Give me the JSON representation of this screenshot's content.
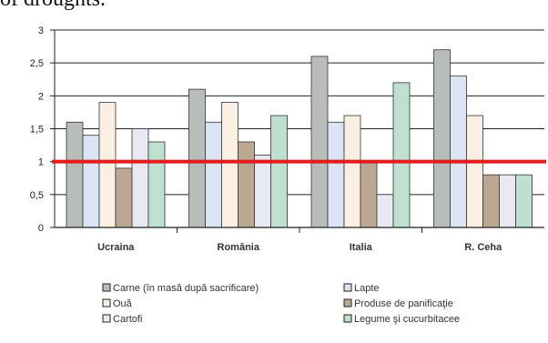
{
  "header_text": "of droughts.",
  "chart_data": {
    "type": "bar",
    "categories": [
      "Ucraina",
      "România",
      "Italia",
      "R. Ceha"
    ],
    "ylim": [
      0,
      3
    ],
    "yticks": [
      "0",
      "0,5",
      "1",
      "1,5",
      "2",
      "2,5",
      "3"
    ],
    "grid": true,
    "reference_line": {
      "value": 1,
      "color": "#e01c1c"
    },
    "series": [
      {
        "name": "Carne (în masă după sacrificare)",
        "color": "#b9bdb9",
        "values": [
          1.6,
          2.1,
          2.6,
          2.7
        ]
      },
      {
        "name": "Lapte",
        "color": "#dbe4f2",
        "values": [
          1.4,
          1.6,
          1.6,
          2.3
        ]
      },
      {
        "name": "Ouă",
        "color": "#fbefe4",
        "values": [
          1.9,
          1.9,
          1.7,
          1.7
        ]
      },
      {
        "name": "Produse de panificaţie",
        "color": "#bba892",
        "values": [
          0.9,
          1.3,
          1.0,
          0.8
        ]
      },
      {
        "name": "Cartofi",
        "color": "#e8e9f3",
        "values": [
          1.5,
          1.1,
          0.5,
          0.8
        ]
      },
      {
        "name": "Legume şi cucurbitacee",
        "color": "#bfe0cf",
        "values": [
          1.3,
          1.7,
          2.2,
          0.8
        ]
      }
    ],
    "legend_order": [
      0,
      1,
      2,
      3,
      4,
      5
    ],
    "legend_position": "bottom"
  }
}
